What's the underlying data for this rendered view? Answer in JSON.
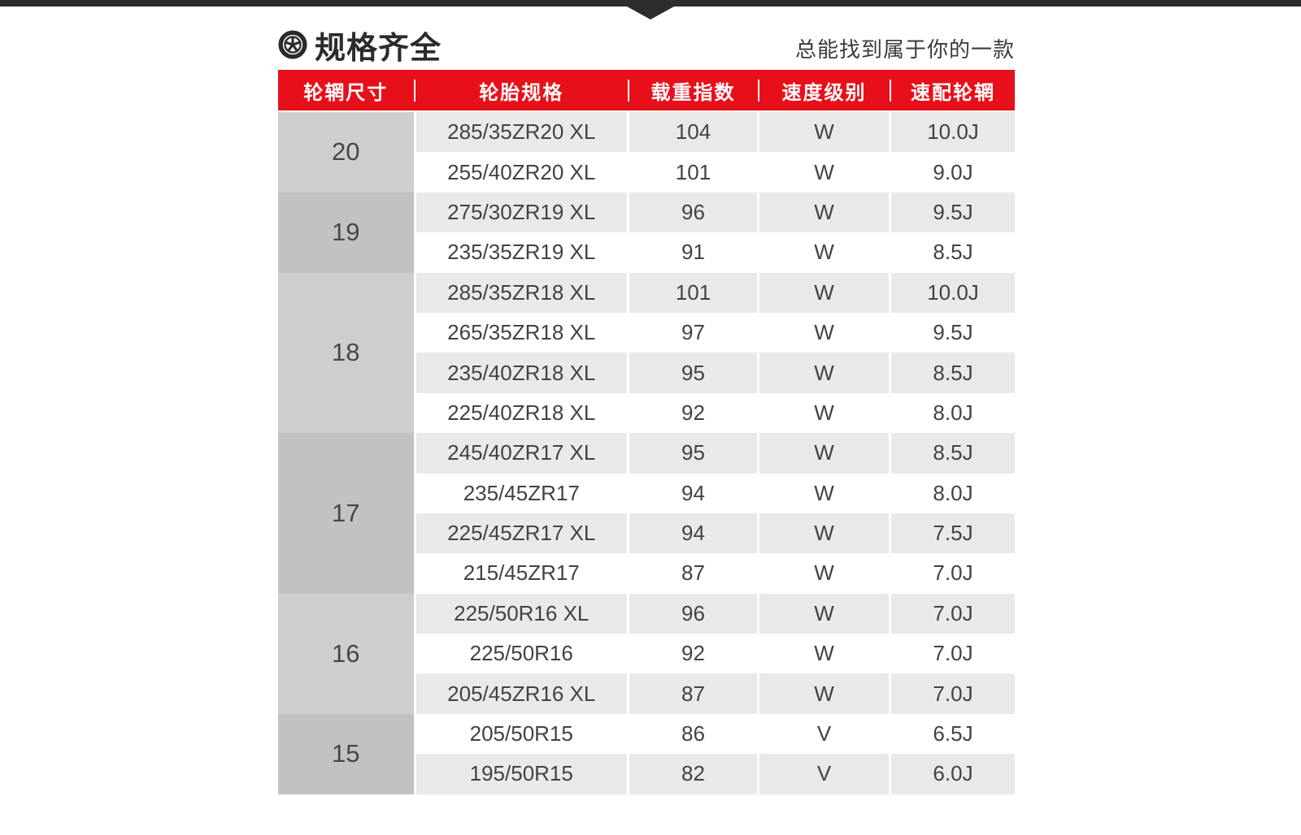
{
  "header": {
    "icon": "wheel-icon",
    "title": "规格齐全",
    "subtitle": "总能找到属于你的一款"
  },
  "table": {
    "headers": [
      "轮辋尺寸",
      "轮胎规格",
      "载重指数",
      "速度级别",
      "速配轮辋"
    ],
    "groups": [
      {
        "rim_size": "20",
        "rows": [
          {
            "spec": "285/35ZR20 XL",
            "load": "104",
            "speed": "W",
            "rim": "10.0J"
          },
          {
            "spec": "255/40ZR20 XL",
            "load": "101",
            "speed": "W",
            "rim": "9.0J"
          }
        ]
      },
      {
        "rim_size": "19",
        "rows": [
          {
            "spec": "275/30ZR19 XL",
            "load": "96",
            "speed": "W",
            "rim": "9.5J"
          },
          {
            "spec": "235/35ZR19 XL",
            "load": "91",
            "speed": "W",
            "rim": "8.5J"
          }
        ]
      },
      {
        "rim_size": "18",
        "rows": [
          {
            "spec": "285/35ZR18 XL",
            "load": "101",
            "speed": "W",
            "rim": "10.0J"
          },
          {
            "spec": "265/35ZR18 XL",
            "load": "97",
            "speed": "W",
            "rim": "9.5J"
          },
          {
            "spec": "235/40ZR18 XL",
            "load": "95",
            "speed": "W",
            "rim": "8.5J"
          },
          {
            "spec": "225/40ZR18 XL",
            "load": "92",
            "speed": "W",
            "rim": "8.0J"
          }
        ]
      },
      {
        "rim_size": "17",
        "rows": [
          {
            "spec": "245/40ZR17 XL",
            "load": "95",
            "speed": "W",
            "rim": "8.5J"
          },
          {
            "spec": "235/45ZR17",
            "load": "94",
            "speed": "W",
            "rim": "8.0J"
          },
          {
            "spec": "225/45ZR17 XL",
            "load": "94",
            "speed": "W",
            "rim": "7.5J"
          },
          {
            "spec": "215/45ZR17",
            "load": "87",
            "speed": "W",
            "rim": "7.0J"
          }
        ]
      },
      {
        "rim_size": "16",
        "rows": [
          {
            "spec": "225/50R16 XL",
            "load": "96",
            "speed": "W",
            "rim": "7.0J"
          },
          {
            "spec": "225/50R16",
            "load": "92",
            "speed": "W",
            "rim": "7.0J"
          },
          {
            "spec": "205/45ZR16 XL",
            "load": "87",
            "speed": "W",
            "rim": "7.0J"
          }
        ]
      },
      {
        "rim_size": "15",
        "rows": [
          {
            "spec": "205/50R15",
            "load": "86",
            "speed": "V",
            "rim": "6.5J"
          },
          {
            "spec": "195/50R15",
            "load": "82",
            "speed": "V",
            "rim": "6.0J"
          }
        ]
      }
    ]
  },
  "colors": {
    "accent_red": "#e7101a",
    "bar_dark": "#2c2c2e",
    "row_gray": "#e9e9e9",
    "row_white": "#ffffff",
    "rim_cell_light": "#cecece",
    "rim_cell_dark": "#c2c2c2",
    "text_dark": "#424242"
  }
}
